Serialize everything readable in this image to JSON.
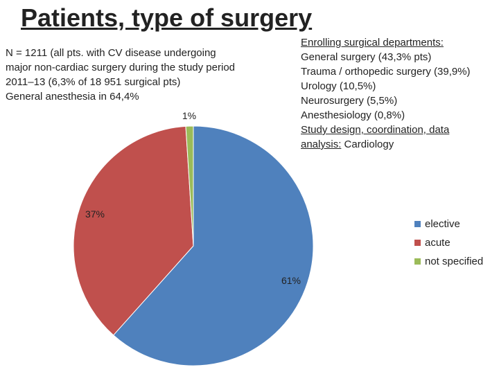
{
  "title": "Patients, type of surgery",
  "info_lines": [
    "N = 1211 (all pts. with CV disease undergoing",
    "major non-cardiac surgery during the study period",
    "2011–13 (6,3% of 18 951 surgical pts)",
    "General anesthesia in 64,4%"
  ],
  "departments": {
    "heading": "Enrolling surgical departments:",
    "items": [
      "General surgery (43,3% pts)",
      "Trauma / orthopedic surgery (39,9%)",
      "Urology (10,5%)",
      "Neurosurgery (5,5%)",
      "Anesthesiology (0,8%)"
    ],
    "study_label": "Study design, coordination, data",
    "study_label_2": "analysis:",
    "study_value": " Cardiology"
  },
  "chart_data": {
    "type": "pie",
    "categories": [
      "elective",
      "acute",
      "not specified"
    ],
    "values": [
      61,
      37,
      1
    ],
    "labels": [
      "61%",
      "37%",
      "1%"
    ],
    "colors": [
      "#4F81BD",
      "#C0504D",
      "#9BBB59"
    ],
    "legend_position": "right"
  }
}
